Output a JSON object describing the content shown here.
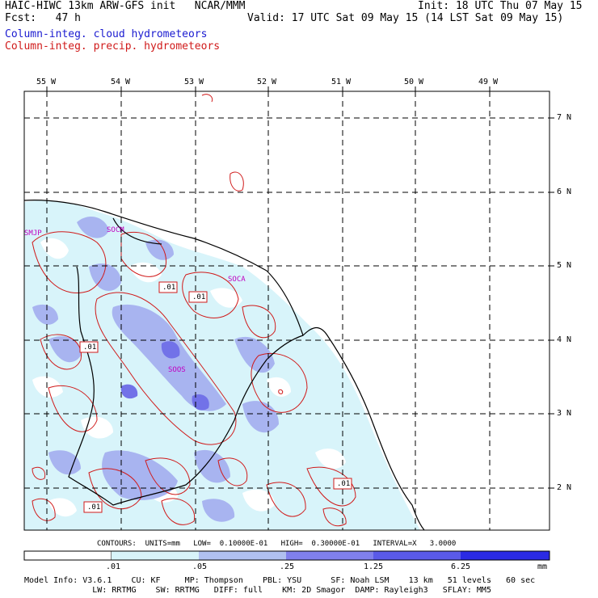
{
  "header": {
    "model": "HAIC-HIWC 13km ARW-GFS init   NCAR/MMM",
    "init": "Init: 18 UTC Thu 07 May 15",
    "fcst": "Fcst:   47 h",
    "valid": "Valid: 17 UTC Sat 09 May 15 (14 LST Sat 09 May 15)",
    "field_cloud": "Column-integ. cloud hydrometeors",
    "field_precip": "Column-integ. precip. hydrometeors"
  },
  "colors": {
    "cloud_text": "#1a1ad0",
    "precip_text": "#d01a1a",
    "shade_1": "#d8f4fa",
    "shade_2": "#b0c0f0",
    "shade_3": "#8080ec",
    "shade_4": "#5a5ae8",
    "shade_5": "#2a2ae4",
    "contour": "#d01a1a",
    "coast": "#000000"
  },
  "map": {
    "lon_labels": [
      "55 W",
      "54 W",
      "53 W",
      "52 W",
      "51 W",
      "50 W",
      "49 W"
    ],
    "lat_labels": [
      "7 N",
      "6 N",
      "5 N",
      "4 N",
      "3 N",
      "2 N"
    ],
    "stations": [
      "SMJP",
      "SOCM",
      "SOCA",
      "SOOS"
    ],
    "contour_labels": [
      ".01",
      ".01",
      ".01",
      ".01",
      ".01"
    ]
  },
  "contours_line": "CONTOURS:  UNITS=mm   LOW=  0.10000E-01   HIGH=  0.30000E-01   INTERVAL=X   3.0000",
  "colorbar": {
    "ticks": [
      ".01",
      ".05",
      ".25",
      "1.25",
      "6.25"
    ],
    "unit": "mm"
  },
  "footer": {
    "line1": "Model Info: V3.6.1    CU: KF     MP: Thompson    PBL: YSU      SF: Noah LSM    13 km   51 levels   60 sec",
    "line2": "              LW: RRTMG    SW: RRTMG   DIFF: full    KM: 2D Smagor  DAMP: Rayleigh3   SFLAY: MM5"
  }
}
